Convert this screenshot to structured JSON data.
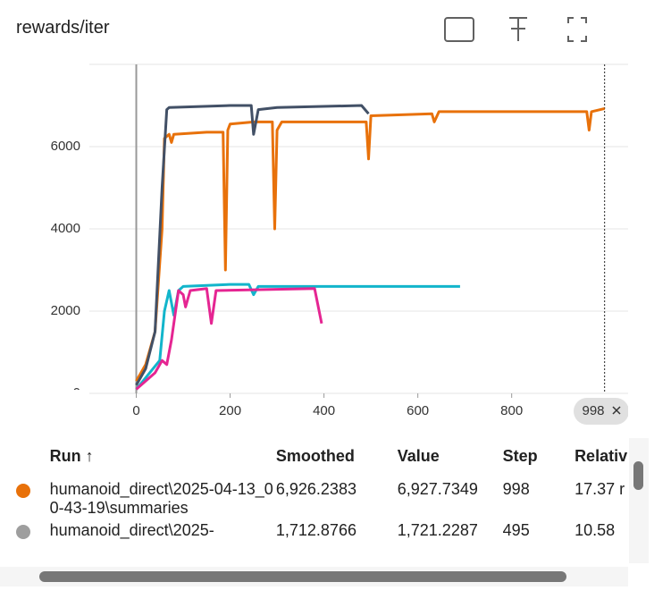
{
  "title": "rewards/iter",
  "chart_data": {
    "type": "line",
    "xlim": [
      -100,
      1090
    ],
    "ylim": [
      0,
      8000
    ],
    "xticks": [
      0,
      200,
      400,
      600,
      800
    ],
    "yticks": [
      0,
      2000,
      4000,
      6000,
      8000
    ],
    "grid": true,
    "cursor_x": 998,
    "series": [
      {
        "name": "humanoid_direct\\2025-04-13_00-43-19\\summaries",
        "color": "#e8710a",
        "x": [
          0,
          20,
          40,
          55,
          60,
          70,
          75,
          80,
          150,
          185,
          190,
          195,
          200,
          250,
          290,
          295,
          300,
          310,
          490,
          495,
          500,
          630,
          635,
          645,
          900,
          960,
          965,
          970,
          998
        ],
        "values": [
          300,
          700,
          1500,
          4000,
          6200,
          6300,
          6100,
          6300,
          6350,
          6350,
          3000,
          6400,
          6550,
          6600,
          6600,
          4000,
          6400,
          6600,
          6600,
          5700,
          6750,
          6800,
          6600,
          6850,
          6850,
          6850,
          6400,
          6850,
          6926
        ]
      },
      {
        "color": "#425066",
        "x": [
          0,
          20,
          40,
          55,
          65,
          70,
          200,
          245,
          250,
          260,
          300,
          480,
          495
        ],
        "values": [
          200,
          600,
          1500,
          5000,
          6900,
          6950,
          7000,
          7000,
          6300,
          6900,
          6950,
          7000,
          6800
        ]
      },
      {
        "color": "#12b5cb",
        "x": [
          0,
          50,
          60,
          70,
          80,
          90,
          100,
          200,
          240,
          250,
          260,
          690
        ],
        "values": [
          100,
          800,
          2000,
          2500,
          1900,
          2500,
          2600,
          2650,
          2650,
          2400,
          2600,
          2600
        ]
      },
      {
        "color": "#e52592",
        "x": [
          0,
          40,
          55,
          65,
          75,
          90,
          100,
          105,
          115,
          150,
          160,
          170,
          380,
          395
        ],
        "values": [
          100,
          500,
          800,
          700,
          1300,
          2500,
          2400,
          2100,
          2500,
          2550,
          1700,
          2500,
          2550,
          1700
        ]
      }
    ]
  },
  "table": {
    "columns": [
      "Run ↑",
      "Smoothed",
      "Value",
      "Step",
      "Relativ"
    ],
    "rows": [
      [
        "humanoid_direct\\2025-04-13_00-43-19\\summaries",
        "6,926.2383",
        "6,927.7349",
        "998",
        "17.37 r"
      ],
      [
        "humanoid_direct\\2025-",
        "1,712.8766",
        "1,721.2287",
        "495",
        "10.58"
      ]
    ]
  }
}
